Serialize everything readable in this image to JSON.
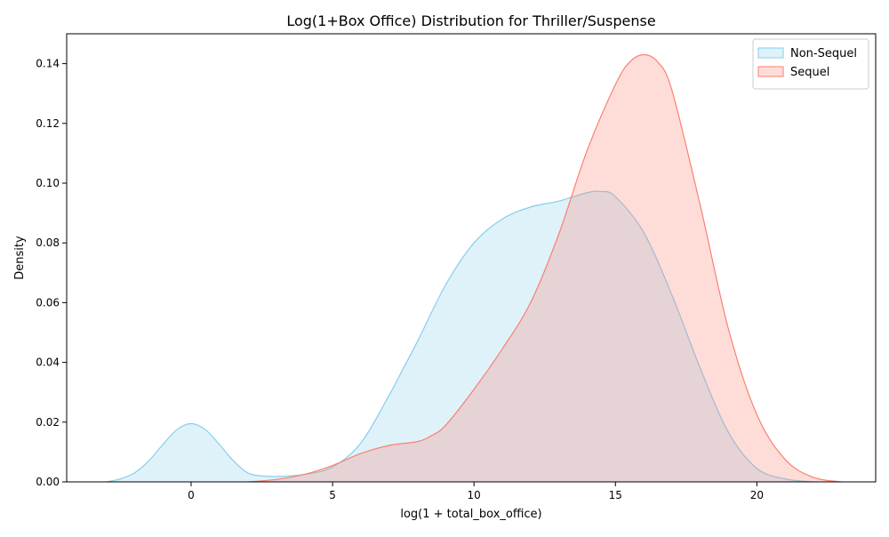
{
  "chart_data": {
    "type": "area",
    "title": "Log(1+Box Office) Distribution for Thriller/Suspense",
    "xlabel": "log(1 + total_box_office)",
    "ylabel": "Density",
    "xlim": [
      -4.4,
      24.2
    ],
    "ylim": [
      0,
      0.15
    ],
    "x_ticks": [
      0,
      5,
      10,
      15,
      20
    ],
    "y_ticks": [
      0.0,
      0.02,
      0.04,
      0.06,
      0.08,
      0.1,
      0.12,
      0.14
    ],
    "x_tick_labels": [
      "0",
      "5",
      "10",
      "15",
      "20"
    ],
    "y_tick_labels": [
      "0.00",
      "0.02",
      "0.04",
      "0.06",
      "0.08",
      "0.10",
      "0.12",
      "0.14"
    ],
    "grid": false,
    "legend_position": "top-right",
    "series": [
      {
        "name": "Non-Sequel",
        "color": "#87ceeb",
        "fill": "#87ceeb",
        "fill_opacity": 0.27,
        "x": [
          -3,
          -2.5,
          -2,
          -1.5,
          -1,
          -0.5,
          0,
          0.5,
          1,
          1.5,
          2,
          2.5,
          3,
          4,
          5,
          6,
          7,
          7.5,
          8,
          9,
          10,
          11,
          12,
          13,
          14,
          14.5,
          15,
          16,
          17,
          18,
          19,
          20,
          21,
          22
        ],
        "y": [
          0.0,
          0.001,
          0.003,
          0.007,
          0.0125,
          0.0175,
          0.0195,
          0.0175,
          0.0125,
          0.007,
          0.003,
          0.002,
          0.0018,
          0.0025,
          0.005,
          0.013,
          0.029,
          0.038,
          0.047,
          0.066,
          0.08,
          0.088,
          0.092,
          0.094,
          0.0968,
          0.0972,
          0.0955,
          0.0835,
          0.0625,
          0.038,
          0.0165,
          0.0045,
          0.001,
          0.0
        ]
      },
      {
        "name": "Sequel",
        "color": "#fa8072",
        "fill": "#fa8072",
        "fill_opacity": 0.27,
        "x": [
          2,
          3,
          4,
          5,
          6,
          7,
          8,
          8.5,
          9,
          10,
          11,
          12,
          13,
          14,
          15,
          15.5,
          16,
          16.5,
          17,
          18,
          19,
          20,
          21,
          22,
          23
        ],
        "y": [
          0.0,
          0.0008,
          0.0025,
          0.0055,
          0.0095,
          0.0122,
          0.0135,
          0.0155,
          0.019,
          0.031,
          0.0445,
          0.06,
          0.083,
          0.111,
          0.133,
          0.1405,
          0.143,
          0.1405,
          0.131,
          0.0925,
          0.051,
          0.0225,
          0.0075,
          0.0015,
          0.0
        ]
      }
    ]
  }
}
